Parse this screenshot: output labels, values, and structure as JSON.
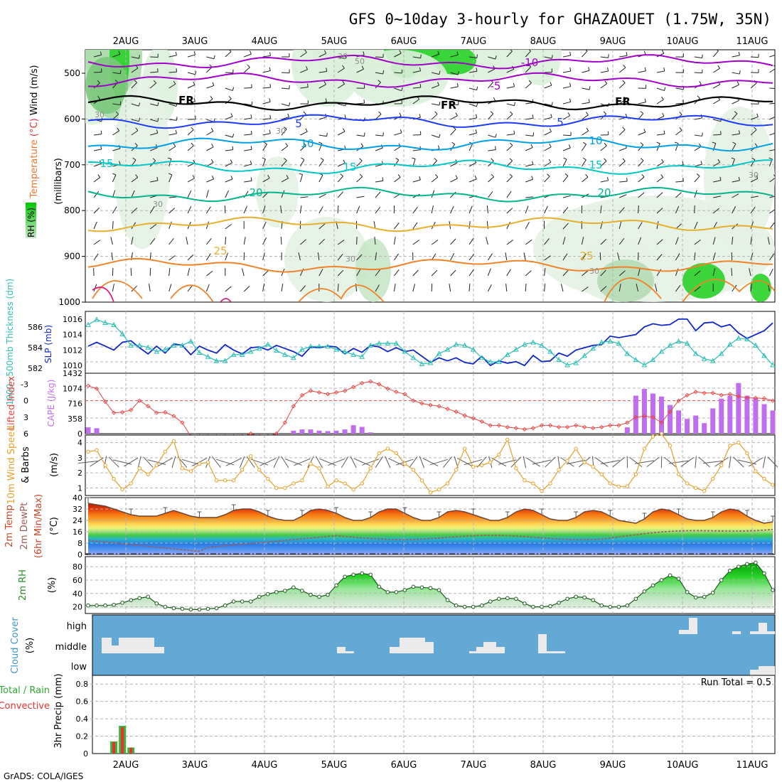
{
  "header": {
    "title": "GFS 0~10day 3-hourly for GHAZAOUET (1.75W, 35N)",
    "footer": "GrADS: COLA/IGES"
  },
  "colors": {
    "grid": "#b4b4b4",
    "temp_purple": "#a000c8",
    "temp_black": "#000000",
    "temp_blue": "#1e3cff",
    "temp_sky": "#00a0e6",
    "temp_teal": "#00c8c8",
    "temp_green": "#00b48c",
    "temp_gold": "#e6af2d",
    "temp_orange": "#f08228",
    "slp": "#0f28c8",
    "thickness": "#2dbeb4",
    "lifted_index": "#e64646",
    "cape": "#c06ef0",
    "wind10m": "#e6a028",
    "dewpoint": "#a05a5a",
    "rh2m": "#2d8c2d",
    "cloud_bg": "#64a8d6",
    "cloud_block": "#ebebeb",
    "precip_rain": "#3cb43c",
    "precip_conv": "#e63232"
  },
  "time_axis": {
    "day_labels": [
      "2AUG",
      "3AUG",
      "4AUG",
      "5AUG",
      "6AUG",
      "7AUG",
      "8AUG",
      "9AUG",
      "10AUG",
      "11AUG"
    ],
    "steps": 81
  },
  "panels": {
    "upper_air": {
      "label_rh": "RH (%)",
      "label_temperature": "Temperature",
      "label_temp_unit": "(°C)",
      "label_wind": "Wind (m/s)",
      "label_units": "(millibars)",
      "pressure_ticks": [
        "500",
        "600",
        "700",
        "800",
        "900",
        "1000"
      ],
      "isotherm_labels": [
        "-10",
        "-5",
        "FR",
        "FR",
        "FR",
        "5",
        "5",
        "10",
        "10",
        "15",
        "15",
        "15",
        "20",
        "20",
        "25",
        "25"
      ],
      "rh_labels": [
        "30",
        "50",
        "30",
        "30",
        "30",
        "30",
        "30",
        "30"
      ],
      "isotherm_levels_mb": [
        {
          "name": "-10",
          "mb": 475,
          "color": "temp_purple"
        },
        {
          "name": "-5",
          "mb": 515,
          "color": "temp_purple"
        },
        {
          "name": "FR",
          "mb": 565,
          "color": "temp_black"
        },
        {
          "name": "5",
          "mb": 605,
          "color": "temp_blue"
        },
        {
          "name": "10",
          "mb": 655,
          "color": "temp_sky"
        },
        {
          "name": "15",
          "mb": 705,
          "color": "temp_teal"
        },
        {
          "name": "20",
          "mb": 765,
          "color": "temp_green"
        },
        {
          "name": "25",
          "mb": 830,
          "color": "temp_gold"
        },
        {
          "name": "30",
          "mb": 920,
          "color": "temp_orange"
        }
      ]
    },
    "slp_thickness": {
      "label_thickness": "1000~500mb Thickness (dm)",
      "label_slp": "SLP (mb)",
      "left_ticks": [
        "586",
        "584",
        "582"
      ],
      "right_ticks": [
        "1016",
        "1014",
        "1012",
        "1010"
      ]
    },
    "li_cape": {
      "label_li": "Lifted Index",
      "label_cape": "CAPE (J/kg)",
      "left_ticks": [
        "-3",
        "0",
        "3",
        "6"
      ],
      "right_ticks": [
        "1432",
        "1074",
        "716",
        "358",
        "0"
      ]
    },
    "wind10m": {
      "label_speed": "10m Wind Speed",
      "label_barbs": "& Barbs",
      "label_unit": "(m/s)",
      "ticks": [
        "4",
        "3",
        "2",
        "1"
      ]
    },
    "temp2m": {
      "label_temp": "2m Temp",
      "label_dew": "2m DewPt",
      "label_minmax": "(6hr Min/Max)",
      "label_unit": "(°C)",
      "ticks": [
        "40",
        "32",
        "24",
        "16",
        "8",
        "0"
      ]
    },
    "rh2m": {
      "label": "2m RH",
      "label_unit": "(%)",
      "ticks": [
        "80",
        "60",
        "40",
        "20"
      ]
    },
    "cloud": {
      "label": "Cloud Cover",
      "label_unit": "(%)",
      "levels": [
        "high",
        "middle",
        "low"
      ]
    },
    "precip": {
      "label_total": "Total / Rain",
      "label_conv": "Convective",
      "label_axis": "3hr Precip (mm)",
      "ticks": [
        "0.8",
        "0.6",
        "0.4",
        "0.2",
        "0"
      ],
      "run_total": "Run Total = 0.5"
    }
  },
  "chart_data": [
    {
      "type": "line",
      "title": "SLP (mb)",
      "ylim": [
        1009,
        1017
      ],
      "values": [
        1012.5,
        1013,
        1012.5,
        1012,
        1013,
        1013.2,
        1012.3,
        1011.5,
        1012.5,
        1011.6,
        1012.8,
        1012.6,
        1011.4,
        1012.5,
        1012,
        1011.6,
        1012.7,
        1012,
        1011.5,
        1012.3,
        1012.4,
        1012,
        1012.6,
        1012.2,
        1011.8,
        1011.2,
        1012.4,
        1012.3,
        1012.5,
        1012.4,
        1011.5,
        1012.2,
        1011.7,
        1012.6,
        1012.4,
        1011.8,
        1012.3,
        1011.8,
        1012,
        1011.2,
        1010.4,
        1011,
        1010.6,
        1011,
        1010.4,
        1010.2,
        1011.2,
        1010,
        1010.6,
        1010.3,
        1010.5,
        1010,
        1011.3,
        1010.5,
        1010.6,
        1011.6,
        1011.2,
        1012,
        1012.3,
        1012.6,
        1012.7,
        1013.8,
        1013.6,
        1013.8,
        1014,
        1015,
        1015.4,
        1015.2,
        1015.3,
        1016,
        1016,
        1014.5,
        1015.5,
        1015.6,
        1015,
        1015.3,
        1014.2,
        1013.5,
        1014,
        1014.5,
        1015.5
      ]
    },
    {
      "type": "line",
      "title": "1000~500mb Thickness (dm)",
      "ylim": [
        581.5,
        587.5
      ],
      "values": [
        586.2,
        586.7,
        586.4,
        586.2,
        585.3,
        584.2,
        584.2,
        584,
        583.6,
        583.8,
        584.2,
        584.2,
        584.6,
        583.5,
        583.1,
        582.7,
        582.7,
        583.3,
        583.3,
        583.6,
        583.9,
        584.3,
        583.7,
        583.3,
        583,
        583.8,
        584.1,
        584.1,
        584.1,
        583.8,
        583.6,
        583.3,
        583.1,
        584.2,
        584.4,
        584.4,
        584.4,
        583.6,
        583,
        582.4,
        582.5,
        583.4,
        583.8,
        584.3,
        584.2,
        583.8,
        583,
        582.6,
        582.6,
        583.3,
        583.8,
        584.3,
        584.5,
        584.2,
        583.6,
        582.8,
        582.3,
        582.5,
        583.2,
        583.9,
        584.5,
        584.6,
        584.4,
        583.4,
        582.8,
        582.3,
        582.8,
        583.6,
        584.2,
        584.6,
        584.4,
        583.4,
        582.9,
        582.7,
        583.4,
        584.3,
        584.9,
        584.8,
        584.2,
        583.2,
        582.3
      ]
    },
    {
      "type": "line",
      "title": "Lifted Index",
      "ylim": [
        -5,
        6
      ],
      "values": [
        -2.7,
        -2.2,
        0.2,
        2.2,
        2.1,
        1.7,
        0,
        1,
        2.2,
        2.1,
        2.8,
        4,
        6.5,
        6.5,
        6.5,
        6.5,
        6.5,
        6.5,
        6.5,
        6,
        6.5,
        6.5,
        6,
        4,
        1,
        -1,
        -1.8,
        -1.5,
        -1.2,
        -1.5,
        -1.8,
        -2.5,
        -3.2,
        -3.5,
        -3,
        -2.2,
        -1.6,
        -1.2,
        0,
        0.5,
        0.8,
        1,
        1.5,
        2,
        2.7,
        3.2,
        3.8,
        4.5,
        4.5,
        4.8,
        5,
        5.2,
        5,
        4.5,
        4.5,
        4.8,
        4.8,
        4.5,
        4.8,
        5,
        4.8,
        4.5,
        4.5,
        4,
        3,
        2.8,
        3,
        4,
        2,
        0,
        -1,
        -1.6,
        -1.4,
        -1.4,
        -1,
        -1.2,
        -0.8,
        -0.5,
        -0.5,
        -0.4,
        0
      ]
    },
    {
      "type": "bar",
      "title": "CAPE (J/kg)",
      "ylim": [
        0,
        1432
      ],
      "values": [
        150,
        130,
        0,
        0,
        0,
        0,
        0,
        0,
        0,
        0,
        0,
        0,
        0,
        0,
        0,
        0,
        0,
        0,
        0,
        0,
        0,
        0,
        0,
        0,
        0,
        0,
        0,
        0,
        0,
        0,
        0,
        0,
        0,
        0,
        0,
        0,
        0,
        0,
        0,
        0,
        0,
        0,
        0,
        0,
        0,
        0,
        0,
        0,
        0,
        0,
        0,
        0,
        0,
        0,
        0,
        0,
        0,
        0,
        0,
        0,
        0,
        0,
        0,
        0,
        0,
        0,
        0,
        0,
        0,
        0,
        0,
        0,
        0,
        0,
        0,
        0,
        0,
        0,
        0,
        0,
        0
      ]
    },
    {
      "type": "line",
      "title": "10m Wind Speed (m/s)",
      "ylim": [
        0.5,
        4.5
      ],
      "values": [
        3.4,
        3.5,
        2.5,
        1.6,
        0.9,
        1.3,
        2.3,
        1.9,
        2.5,
        3.4,
        4.1,
        2.3,
        2.1,
        2.6,
        2.7,
        1.5,
        1.5,
        1.5,
        2.2,
        3.1,
        2.2,
        1.6,
        1,
        1,
        1.3,
        1.5,
        2.6,
        2.3,
        1.1,
        1.5,
        1.3,
        0.9,
        1.3,
        2.3,
        3.3,
        3.6,
        3.3,
        2.6,
        2.2,
        1.5,
        0.7,
        0.9,
        1.3,
        2.2,
        3.6,
        2.4,
        2.5,
        2.7,
        3.2,
        4.2,
        2.3,
        1.5,
        1.3,
        0.8,
        1.3,
        2.2,
        2.8,
        3.6,
        2.7,
        2.4,
        1.9,
        1.3,
        1.1,
        1.1,
        1.9,
        3.6,
        4.4,
        4.6,
        3.8,
        1.9,
        1.3,
        1,
        0.8,
        1.6,
        2.5,
        3.8,
        4,
        3.3,
        2.1,
        1.6,
        1.2
      ]
    },
    {
      "type": "area",
      "title": "2m Temp (°C)",
      "ylim": [
        0,
        40
      ],
      "values": [
        36,
        35,
        34,
        32,
        30,
        28,
        27,
        27,
        27,
        29,
        31,
        29,
        27,
        26,
        26,
        26,
        28,
        31,
        32,
        32,
        30,
        27,
        25,
        24,
        24,
        27,
        31,
        32,
        31,
        29,
        26,
        24,
        24,
        26,
        30,
        32,
        32,
        29,
        26,
        24,
        24,
        26,
        30,
        31,
        30,
        28,
        26,
        24,
        24,
        26,
        30,
        32,
        31,
        28,
        25,
        24,
        24,
        26,
        30,
        31,
        30,
        27,
        24,
        23,
        22,
        25,
        30,
        32,
        31,
        28,
        25,
        24,
        24,
        26,
        30,
        32,
        31,
        27,
        24,
        22,
        23
      ]
    },
    {
      "type": "area",
      "title": "2m RH (%)",
      "ylim": [
        10,
        95
      ],
      "values": [
        22,
        22,
        22,
        23,
        26,
        30,
        33,
        35,
        25,
        20,
        18,
        17,
        16,
        16,
        17,
        18,
        22,
        28,
        28,
        28,
        35,
        39,
        42,
        44,
        49,
        44,
        38,
        35,
        38,
        52,
        65,
        68,
        70,
        68,
        50,
        42,
        42,
        45,
        50,
        49,
        48,
        45,
        30,
        22,
        20,
        20,
        22,
        28,
        32,
        33,
        32,
        25,
        20,
        20,
        21,
        26,
        32,
        35,
        34,
        30,
        22,
        20,
        20,
        22,
        32,
        43,
        52,
        60,
        67,
        62,
        42,
        34,
        35,
        41,
        60,
        74,
        80,
        84,
        86,
        70,
        45
      ]
    },
    {
      "type": "bar",
      "title": "3hr Precip (mm)",
      "ylim": [
        0,
        0.9
      ],
      "values": [
        0,
        0,
        0,
        0.14,
        0.32,
        0.07,
        0,
        0,
        0,
        0,
        0,
        0,
        0,
        0,
        0,
        0,
        0,
        0,
        0,
        0,
        0,
        0,
        0,
        0,
        0,
        0,
        0,
        0,
        0,
        0,
        0,
        0,
        0,
        0,
        0,
        0,
        0,
        0,
        0,
        0,
        0,
        0,
        0,
        0,
        0,
        0,
        0,
        0,
        0,
        0,
        0,
        0,
        0,
        0,
        0,
        0,
        0,
        0,
        0,
        0,
        0,
        0,
        0,
        0,
        0,
        0,
        0,
        0,
        0,
        0,
        0,
        0,
        0,
        0,
        0,
        0,
        0,
        0,
        0,
        0,
        0
      ]
    }
  ]
}
